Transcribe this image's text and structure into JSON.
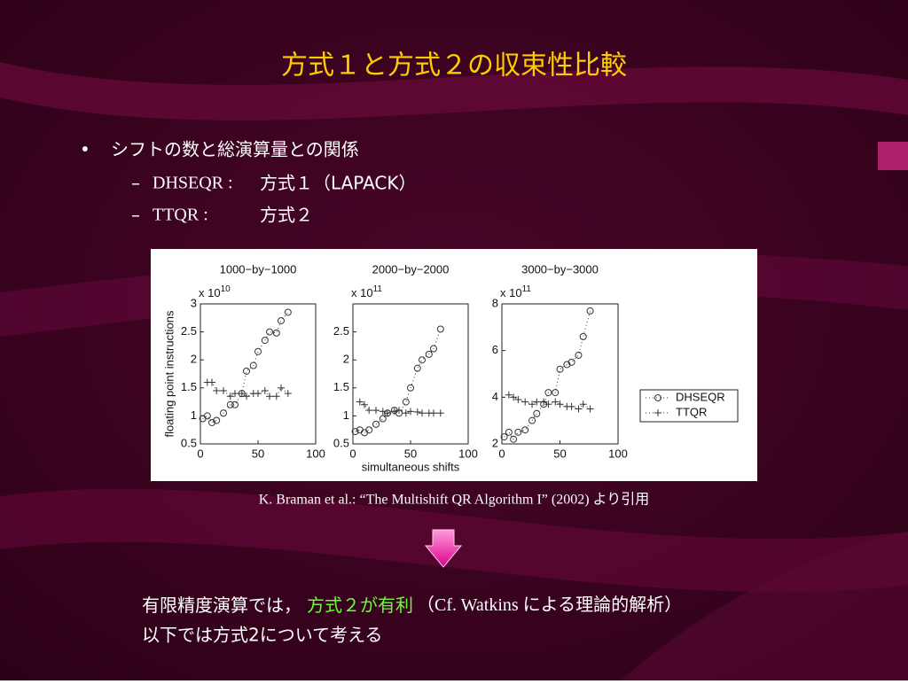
{
  "slide": {
    "title": "方式１と方式２の収束性比較",
    "bullet": "シフトの数と総演算量との関係",
    "subitems": [
      [
        "DHSEQR :",
        "方式１（LAPACK）"
      ],
      [
        "TTQR :",
        "方式２"
      ]
    ],
    "citation": "K. Braman et al.: “The Multishift QR Algorithm I” (2002) より引用",
    "conclusion": {
      "line1": [
        "有限精度演算では，",
        "方式２が有利",
        "（Cf. Watkins による理論的解析）"
      ],
      "line2": "以下では方式2について考える"
    }
  },
  "chart_data": [
    {
      "type": "scatter",
      "title": "1000−by−1000",
      "ylabel": "floating point instructions",
      "exponent_base": "x 10",
      "exponent": "10",
      "xlim": [
        0,
        100
      ],
      "xticks": [
        0,
        50,
        100
      ],
      "ylim": [
        0.5,
        3
      ],
      "yticks": [
        0.5,
        1,
        1.5,
        2,
        2.5,
        3
      ],
      "series": [
        {
          "marker": "o",
          "color": "#333333",
          "x": [
            2,
            6,
            10,
            14,
            20,
            26,
            30,
            36,
            40,
            46,
            50,
            56,
            60,
            66,
            70,
            76
          ],
          "values": [
            0.95,
            1.0,
            0.88,
            0.92,
            1.05,
            1.2,
            1.2,
            1.4,
            1.8,
            1.9,
            2.15,
            2.35,
            2.5,
            2.48,
            2.7,
            2.85
          ]
        },
        {
          "marker": "+",
          "color": "#333333",
          "x": [
            6,
            10,
            14,
            20,
            26,
            30,
            36,
            40,
            46,
            50,
            56,
            60,
            66,
            70,
            76
          ],
          "values": [
            1.6,
            1.6,
            1.45,
            1.45,
            1.35,
            1.4,
            1.4,
            1.35,
            1.4,
            1.4,
            1.45,
            1.35,
            1.35,
            1.5,
            1.4
          ]
        }
      ]
    },
    {
      "type": "scatter",
      "title": "2000−by−2000",
      "xlabel": "simultaneous shifts",
      "exponent_base": "x 10",
      "exponent": "11",
      "xlim": [
        0,
        100
      ],
      "xticks": [
        0,
        50,
        100
      ],
      "ylim": [
        0.5,
        3
      ],
      "yticks": [
        0.5,
        1,
        1.5,
        2,
        2.5
      ],
      "series": [
        {
          "marker": "o",
          "color": "#333333",
          "x": [
            2,
            6,
            10,
            14,
            20,
            26,
            30,
            36,
            40,
            46,
            50,
            56,
            60,
            66,
            70,
            76
          ],
          "values": [
            0.72,
            0.75,
            0.7,
            0.75,
            0.85,
            0.95,
            1.05,
            1.1,
            1.05,
            1.25,
            1.5,
            1.85,
            2.0,
            2.1,
            2.2,
            2.55
          ]
        },
        {
          "marker": "+",
          "color": "#333333",
          "x": [
            6,
            10,
            14,
            20,
            26,
            30,
            36,
            40,
            46,
            50,
            56,
            60,
            66,
            70,
            76
          ],
          "values": [
            1.25,
            1.2,
            1.1,
            1.1,
            1.08,
            1.05,
            1.08,
            1.1,
            1.05,
            1.08,
            1.07,
            1.05,
            1.05,
            1.05,
            1.05
          ]
        }
      ]
    },
    {
      "type": "scatter",
      "title": "3000−by−3000",
      "exponent_base": "x 10",
      "exponent": "11",
      "xlim": [
        0,
        100
      ],
      "xticks": [
        0,
        50,
        100
      ],
      "ylim": [
        2,
        8
      ],
      "yticks": [
        2,
        4,
        6,
        8
      ],
      "legend": "right",
      "series": [
        {
          "name": "DHSEQR",
          "marker": "o",
          "color": "#333333",
          "x": [
            2,
            6,
            10,
            14,
            20,
            26,
            30,
            36,
            40,
            46,
            50,
            56,
            60,
            66,
            70,
            76
          ],
          "values": [
            2.3,
            2.5,
            2.2,
            2.5,
            2.6,
            3.0,
            3.3,
            3.7,
            4.2,
            4.2,
            5.2,
            5.4,
            5.5,
            5.8,
            6.6,
            7.7
          ]
        },
        {
          "name": "TTQR",
          "marker": "+",
          "color": "#333333",
          "x": [
            6,
            10,
            14,
            20,
            26,
            30,
            36,
            40,
            46,
            50,
            56,
            60,
            66,
            70,
            76
          ],
          "values": [
            4.1,
            4.0,
            3.9,
            3.8,
            3.7,
            3.8,
            3.8,
            3.7,
            3.8,
            3.7,
            3.6,
            3.6,
            3.5,
            3.7,
            3.5
          ]
        }
      ]
    }
  ]
}
